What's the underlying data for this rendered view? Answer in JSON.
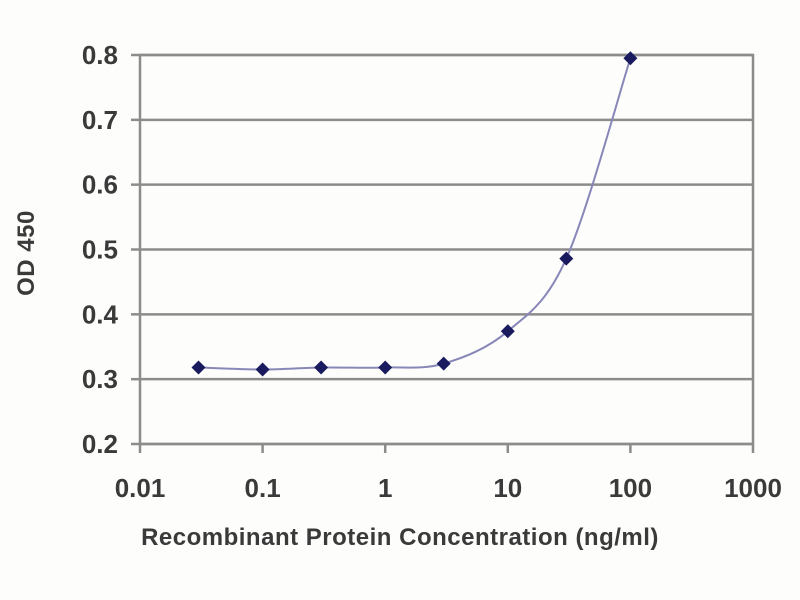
{
  "chart_data": {
    "type": "line",
    "title": "",
    "xlabel": "Recombinant Protein Concentration (ng/ml)",
    "ylabel": "OD 450",
    "x_scale": "log",
    "xlim": [
      0.01,
      1000
    ],
    "ylim": [
      0.2,
      0.8
    ],
    "grid": "horizontal",
    "legend": "none",
    "x_ticks": [
      "0.01",
      "0.1",
      "1",
      "10",
      "100",
      "1000"
    ],
    "x_tick_values": [
      0.01,
      0.1,
      1,
      10,
      100,
      1000
    ],
    "y_ticks": [
      "0.2",
      "0.3",
      "0.4",
      "0.5",
      "0.6",
      "0.7",
      "0.8"
    ],
    "y_tick_values": [
      0.2,
      0.3,
      0.4,
      0.5,
      0.6,
      0.7,
      0.8
    ],
    "x": [
      0.03,
      0.1,
      0.3,
      1,
      3,
      10,
      30,
      100
    ],
    "series": [
      {
        "name": "OD 450",
        "values": [
          0.318,
          0.315,
          0.318,
          0.318,
          0.324,
          0.374,
          0.486,
          0.795
        ]
      }
    ],
    "marker_shape": "diamond",
    "colors": {
      "marker": "#1a1a5e",
      "line": "#8888b8",
      "grid": "#8c8c8c",
      "frame": "#8c8c8c",
      "text": "#3a3a3a",
      "background": "#fdfdfb"
    }
  }
}
